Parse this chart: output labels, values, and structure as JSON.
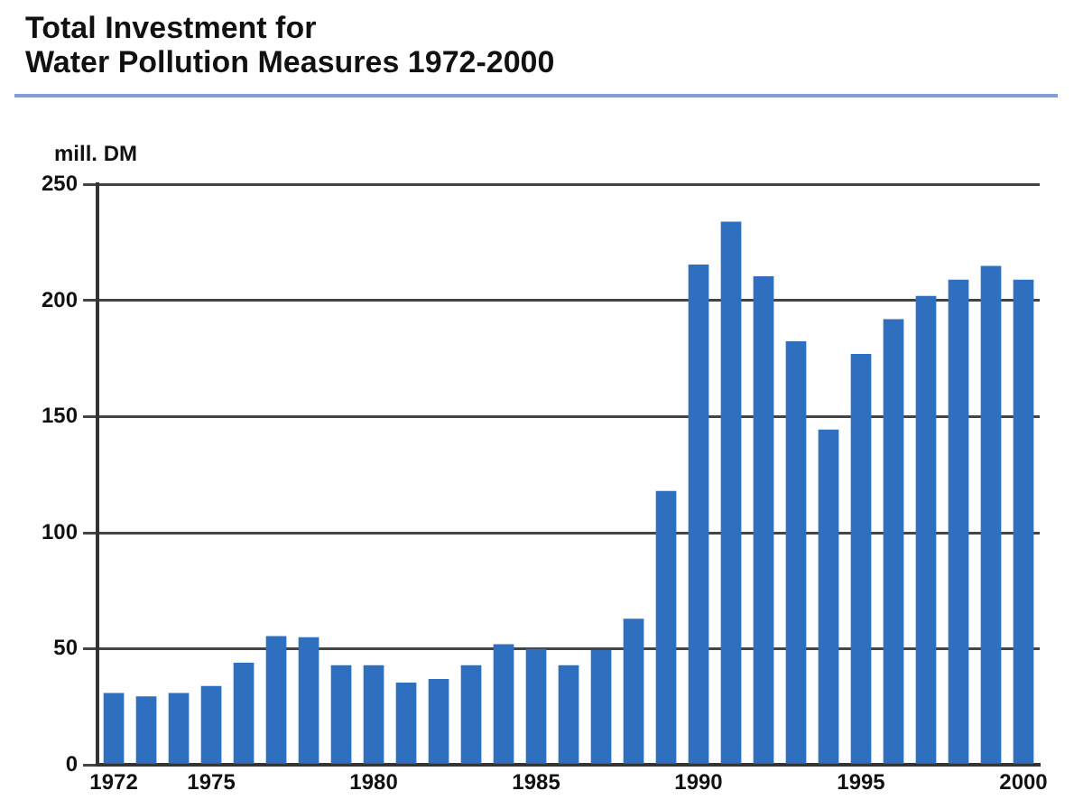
{
  "chart_data": {
    "type": "bar",
    "title": "Total Investment for\nWater Pollution Measures 1972-2000",
    "ylabel": "mill. DM",
    "categories": [
      "1972",
      null,
      null,
      "1975",
      null,
      null,
      null,
      null,
      "1980",
      null,
      null,
      null,
      null,
      "1985",
      null,
      null,
      null,
      null,
      "1990",
      null,
      null,
      null,
      null,
      "1995",
      null,
      null,
      null,
      null,
      "2000"
    ],
    "values": [
      31,
      29.5,
      31,
      34,
      44,
      55.5,
      55,
      43,
      43,
      35.5,
      37,
      43,
      52,
      50,
      43,
      49.5,
      63,
      118,
      215.5,
      234,
      210.5,
      182.5,
      144.5,
      177,
      192,
      202,
      209,
      215,
      209
    ],
    "color": "#2f6fc0",
    "ylim": [
      0,
      250
    ],
    "yticks": [
      0,
      50,
      100,
      150,
      200,
      250
    ],
    "grid": "y"
  }
}
